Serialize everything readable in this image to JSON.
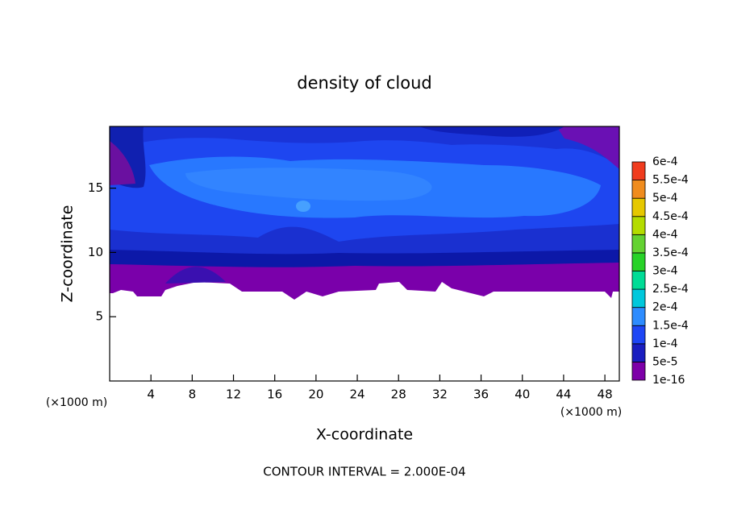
{
  "chart_data": {
    "type": "contour",
    "title": "density of cloud",
    "x_label": "X-coordinate",
    "y_label": "Z-coordinate",
    "x_unit": "(×1000 m)",
    "annotation": "CONTOUR INTERVAL = 2.000E-04",
    "xlim": [
      0,
      49.4
    ],
    "ylim": [
      0,
      19.8
    ],
    "xticks": [
      4,
      8,
      12,
      16,
      20,
      24,
      28,
      32,
      36,
      40,
      44,
      48
    ],
    "yticks": [
      5,
      10,
      15
    ],
    "colorbar": {
      "ticks": [
        {
          "value": 1e-16,
          "label": "1e-16"
        },
        {
          "value": 5e-05,
          "label": "5e-5"
        },
        {
          "value": 0.0001,
          "label": "1e-4"
        },
        {
          "value": 0.00015,
          "label": "1.5e-4"
        },
        {
          "value": 0.0002,
          "label": "2e-4"
        },
        {
          "value": 0.00025,
          "label": "2.5e-4"
        },
        {
          "value": 0.0003,
          "label": "3e-4"
        },
        {
          "value": 0.00035,
          "label": "3.5e-4"
        },
        {
          "value": 0.0004,
          "label": "4e-4"
        },
        {
          "value": 0.00045,
          "label": "4.5e-4"
        },
        {
          "value": 0.0005,
          "label": "5e-4"
        },
        {
          "value": 0.00055,
          "label": "5.5e-4"
        },
        {
          "value": 0.0006,
          "label": "6e-4"
        }
      ],
      "colors": [
        "#7d00a8",
        "#1a1ec0",
        "#1e46f5",
        "#2d8cff",
        "#00c8dc",
        "#00dc96",
        "#28d228",
        "#64d232",
        "#b4dc00",
        "#e6c800",
        "#f08c1e",
        "#f03c1e",
        "#f08c8c"
      ]
    }
  }
}
